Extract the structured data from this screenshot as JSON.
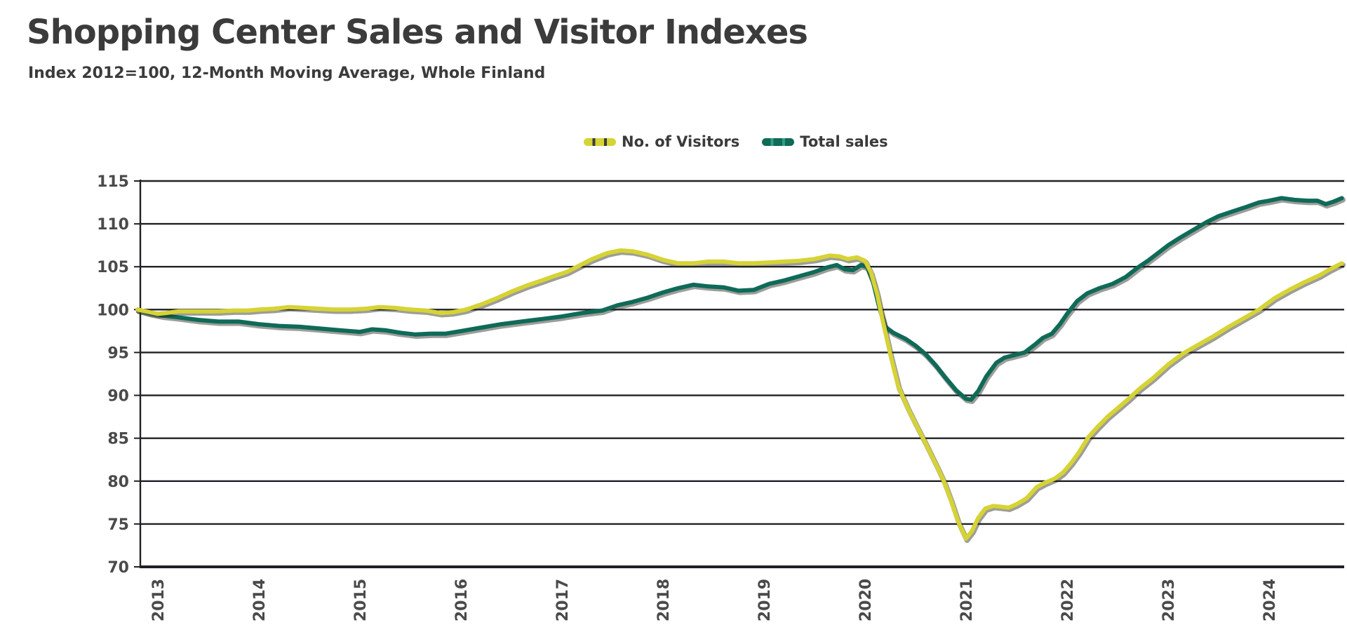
{
  "header": {
    "title": "Shopping Center Sales and Visitor Indexes",
    "subtitle": "Index 2012=100, 12-Month Moving Average, Whole Finland"
  },
  "legend": {
    "position": "top-center",
    "items": [
      {
        "label": "No. of Visitors",
        "color": "#d6d335",
        "dash_gap_color": "#3d3d3d"
      },
      {
        "label": "Total sales",
        "color": "#0f6a58",
        "dash_gap_color": "#2f9e82"
      }
    ]
  },
  "colors": {
    "background": "#ffffff",
    "title_text": "#3b3b3b",
    "tick_text": "#4a4a4a",
    "gridline": "#202126",
    "visitors_line": "#d6d335",
    "sales_line": "#0f6a58",
    "line_shadow": "#26261c"
  },
  "chart_data": {
    "type": "line",
    "title": "Shopping Center Sales and Visitor Indexes",
    "subtitle": "Index 2012=100, 12-Month Moving Average, Whole Finland",
    "xlabel": "",
    "ylabel": "",
    "ylim": [
      70,
      115
    ],
    "xlim": [
      2012.8,
      2024.95
    ],
    "grid": "horizontal",
    "y_ticks": [
      70,
      75,
      80,
      85,
      90,
      95,
      100,
      105,
      110,
      115
    ],
    "x_ticks": [
      2013,
      2014,
      2015,
      2016,
      2017,
      2018,
      2019,
      2020,
      2021,
      2022,
      2023,
      2024
    ],
    "series": [
      {
        "name": "No. of Visitors",
        "color": "#d6d335",
        "points": [
          [
            2012.8,
            100.0
          ],
          [
            2012.92,
            99.7
          ],
          [
            2013.0,
            99.5
          ],
          [
            2013.08,
            99.6
          ],
          [
            2013.2,
            99.8
          ],
          [
            2013.4,
            99.8
          ],
          [
            2013.6,
            99.8
          ],
          [
            2013.75,
            99.9
          ],
          [
            2013.9,
            99.9
          ],
          [
            2014.0,
            100.0
          ],
          [
            2014.15,
            100.1
          ],
          [
            2014.3,
            100.3
          ],
          [
            2014.45,
            100.2
          ],
          [
            2014.6,
            100.1
          ],
          [
            2014.75,
            100.0
          ],
          [
            2014.9,
            100.0
          ],
          [
            2015.05,
            100.1
          ],
          [
            2015.2,
            100.3
          ],
          [
            2015.35,
            100.2
          ],
          [
            2015.5,
            100.0
          ],
          [
            2015.65,
            99.9
          ],
          [
            2015.8,
            99.6
          ],
          [
            2015.92,
            99.7
          ],
          [
            2016.05,
            100.0
          ],
          [
            2016.2,
            100.6
          ],
          [
            2016.35,
            101.3
          ],
          [
            2016.5,
            102.1
          ],
          [
            2016.65,
            102.8
          ],
          [
            2016.8,
            103.4
          ],
          [
            2016.92,
            103.9
          ],
          [
            2017.05,
            104.4
          ],
          [
            2017.15,
            105.0
          ],
          [
            2017.3,
            105.9
          ],
          [
            2017.45,
            106.6
          ],
          [
            2017.58,
            106.9
          ],
          [
            2017.7,
            106.8
          ],
          [
            2017.85,
            106.4
          ],
          [
            2018.0,
            105.8
          ],
          [
            2018.15,
            105.4
          ],
          [
            2018.3,
            105.4
          ],
          [
            2018.45,
            105.6
          ],
          [
            2018.6,
            105.6
          ],
          [
            2018.75,
            105.4
          ],
          [
            2018.9,
            105.4
          ],
          [
            2019.05,
            105.5
          ],
          [
            2019.2,
            105.6
          ],
          [
            2019.35,
            105.7
          ],
          [
            2019.5,
            105.9
          ],
          [
            2019.65,
            106.3
          ],
          [
            2019.75,
            106.2
          ],
          [
            2019.83,
            105.9
          ],
          [
            2019.92,
            106.1
          ],
          [
            2020.0,
            105.7
          ],
          [
            2020.06,
            104.3
          ],
          [
            2020.12,
            101.8
          ],
          [
            2020.17,
            99.0
          ],
          [
            2020.25,
            94.8
          ],
          [
            2020.33,
            91.0
          ],
          [
            2020.42,
            88.6
          ],
          [
            2020.5,
            86.7
          ],
          [
            2020.6,
            84.4
          ],
          [
            2020.7,
            82.0
          ],
          [
            2020.78,
            80.0
          ],
          [
            2020.85,
            77.8
          ],
          [
            2020.92,
            75.3
          ],
          [
            2021.0,
            73.3
          ],
          [
            2021.06,
            74.2
          ],
          [
            2021.12,
            75.7
          ],
          [
            2021.19,
            76.8
          ],
          [
            2021.27,
            77.1
          ],
          [
            2021.35,
            77.0
          ],
          [
            2021.42,
            76.9
          ],
          [
            2021.5,
            77.3
          ],
          [
            2021.6,
            78.0
          ],
          [
            2021.7,
            79.3
          ],
          [
            2021.78,
            79.8
          ],
          [
            2021.88,
            80.3
          ],
          [
            2021.96,
            81.0
          ],
          [
            2022.04,
            82.1
          ],
          [
            2022.12,
            83.4
          ],
          [
            2022.21,
            85.1
          ],
          [
            2022.3,
            86.3
          ],
          [
            2022.4,
            87.5
          ],
          [
            2022.5,
            88.5
          ],
          [
            2022.6,
            89.5
          ],
          [
            2022.72,
            90.8
          ],
          [
            2022.85,
            92.0
          ],
          [
            2023.0,
            93.6
          ],
          [
            2023.15,
            94.9
          ],
          [
            2023.3,
            95.9
          ],
          [
            2023.45,
            96.9
          ],
          [
            2023.6,
            98.0
          ],
          [
            2023.75,
            99.0
          ],
          [
            2023.9,
            100.0
          ],
          [
            2024.05,
            101.3
          ],
          [
            2024.2,
            102.3
          ],
          [
            2024.35,
            103.2
          ],
          [
            2024.5,
            104.0
          ],
          [
            2024.6,
            104.7
          ],
          [
            2024.72,
            105.4
          ]
        ]
      },
      {
        "name": "Total sales",
        "color": "#0f6a58",
        "points": [
          [
            2012.8,
            100.0
          ],
          [
            2012.92,
            99.6
          ],
          [
            2013.05,
            99.3
          ],
          [
            2013.2,
            99.1
          ],
          [
            2013.4,
            98.8
          ],
          [
            2013.6,
            98.6
          ],
          [
            2013.8,
            98.6
          ],
          [
            2014.0,
            98.3
          ],
          [
            2014.2,
            98.1
          ],
          [
            2014.4,
            98.0
          ],
          [
            2014.6,
            97.8
          ],
          [
            2014.8,
            97.6
          ],
          [
            2015.0,
            97.4
          ],
          [
            2015.12,
            97.7
          ],
          [
            2015.25,
            97.6
          ],
          [
            2015.4,
            97.3
          ],
          [
            2015.55,
            97.1
          ],
          [
            2015.7,
            97.2
          ],
          [
            2015.85,
            97.2
          ],
          [
            2016.0,
            97.5
          ],
          [
            2016.2,
            97.9
          ],
          [
            2016.4,
            98.3
          ],
          [
            2016.6,
            98.6
          ],
          [
            2016.8,
            98.9
          ],
          [
            2017.0,
            99.2
          ],
          [
            2017.2,
            99.6
          ],
          [
            2017.4,
            99.9
          ],
          [
            2017.55,
            100.5
          ],
          [
            2017.7,
            100.9
          ],
          [
            2017.85,
            101.4
          ],
          [
            2018.0,
            102.0
          ],
          [
            2018.15,
            102.5
          ],
          [
            2018.3,
            102.9
          ],
          [
            2018.45,
            102.7
          ],
          [
            2018.6,
            102.6
          ],
          [
            2018.75,
            102.2
          ],
          [
            2018.9,
            102.3
          ],
          [
            2019.05,
            103.0
          ],
          [
            2019.2,
            103.4
          ],
          [
            2019.35,
            103.9
          ],
          [
            2019.5,
            104.4
          ],
          [
            2019.62,
            104.9
          ],
          [
            2019.72,
            105.2
          ],
          [
            2019.8,
            104.7
          ],
          [
            2019.88,
            104.6
          ],
          [
            2019.96,
            105.2
          ],
          [
            2020.02,
            105.0
          ],
          [
            2020.08,
            103.2
          ],
          [
            2020.14,
            100.3
          ],
          [
            2020.2,
            98.0
          ],
          [
            2020.28,
            97.3
          ],
          [
            2020.4,
            96.6
          ],
          [
            2020.5,
            95.8
          ],
          [
            2020.6,
            94.8
          ],
          [
            2020.7,
            93.5
          ],
          [
            2020.8,
            92.0
          ],
          [
            2020.9,
            90.6
          ],
          [
            2021.0,
            89.6
          ],
          [
            2021.05,
            89.5
          ],
          [
            2021.12,
            90.5
          ],
          [
            2021.2,
            92.2
          ],
          [
            2021.3,
            93.8
          ],
          [
            2021.38,
            94.4
          ],
          [
            2021.48,
            94.7
          ],
          [
            2021.58,
            95.0
          ],
          [
            2021.68,
            95.9
          ],
          [
            2021.76,
            96.7
          ],
          [
            2021.85,
            97.2
          ],
          [
            2021.93,
            98.3
          ],
          [
            2022.0,
            99.5
          ],
          [
            2022.1,
            101.0
          ],
          [
            2022.2,
            101.9
          ],
          [
            2022.32,
            102.5
          ],
          [
            2022.45,
            103.0
          ],
          [
            2022.58,
            103.8
          ],
          [
            2022.7,
            104.9
          ],
          [
            2022.8,
            105.7
          ],
          [
            2022.9,
            106.6
          ],
          [
            2023.0,
            107.5
          ],
          [
            2023.12,
            108.4
          ],
          [
            2023.25,
            109.3
          ],
          [
            2023.38,
            110.2
          ],
          [
            2023.5,
            110.9
          ],
          [
            2023.65,
            111.5
          ],
          [
            2023.78,
            112.0
          ],
          [
            2023.9,
            112.5
          ],
          [
            2024.0,
            112.7
          ],
          [
            2024.12,
            113.0
          ],
          [
            2024.25,
            112.8
          ],
          [
            2024.38,
            112.7
          ],
          [
            2024.48,
            112.7
          ],
          [
            2024.56,
            112.3
          ],
          [
            2024.64,
            112.6
          ],
          [
            2024.72,
            113.0
          ]
        ]
      }
    ]
  }
}
